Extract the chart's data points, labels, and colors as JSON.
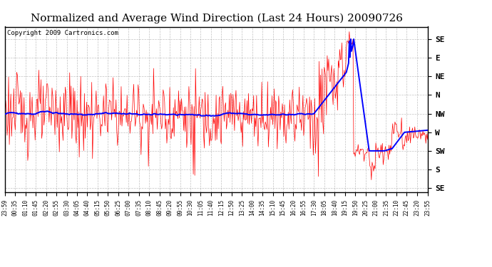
{
  "title": "Normalized and Average Wind Direction (Last 24 Hours) 20090726",
  "copyright": "Copyright 2009 Cartronics.com",
  "ytick_labels": [
    "SE",
    "E",
    "NE",
    "N",
    "NW",
    "W",
    "SW",
    "S",
    "SE"
  ],
  "ytick_values": [
    360,
    315,
    270,
    225,
    180,
    135,
    90,
    45,
    0
  ],
  "ylim": [
    -10,
    390
  ],
  "red_color": "#FF0000",
  "blue_color": "#0000FF",
  "background_color": "#FFFFFF",
  "grid_color": "#999999",
  "title_fontsize": 11,
  "copyright_fontsize": 6.5,
  "n_points": 576
}
